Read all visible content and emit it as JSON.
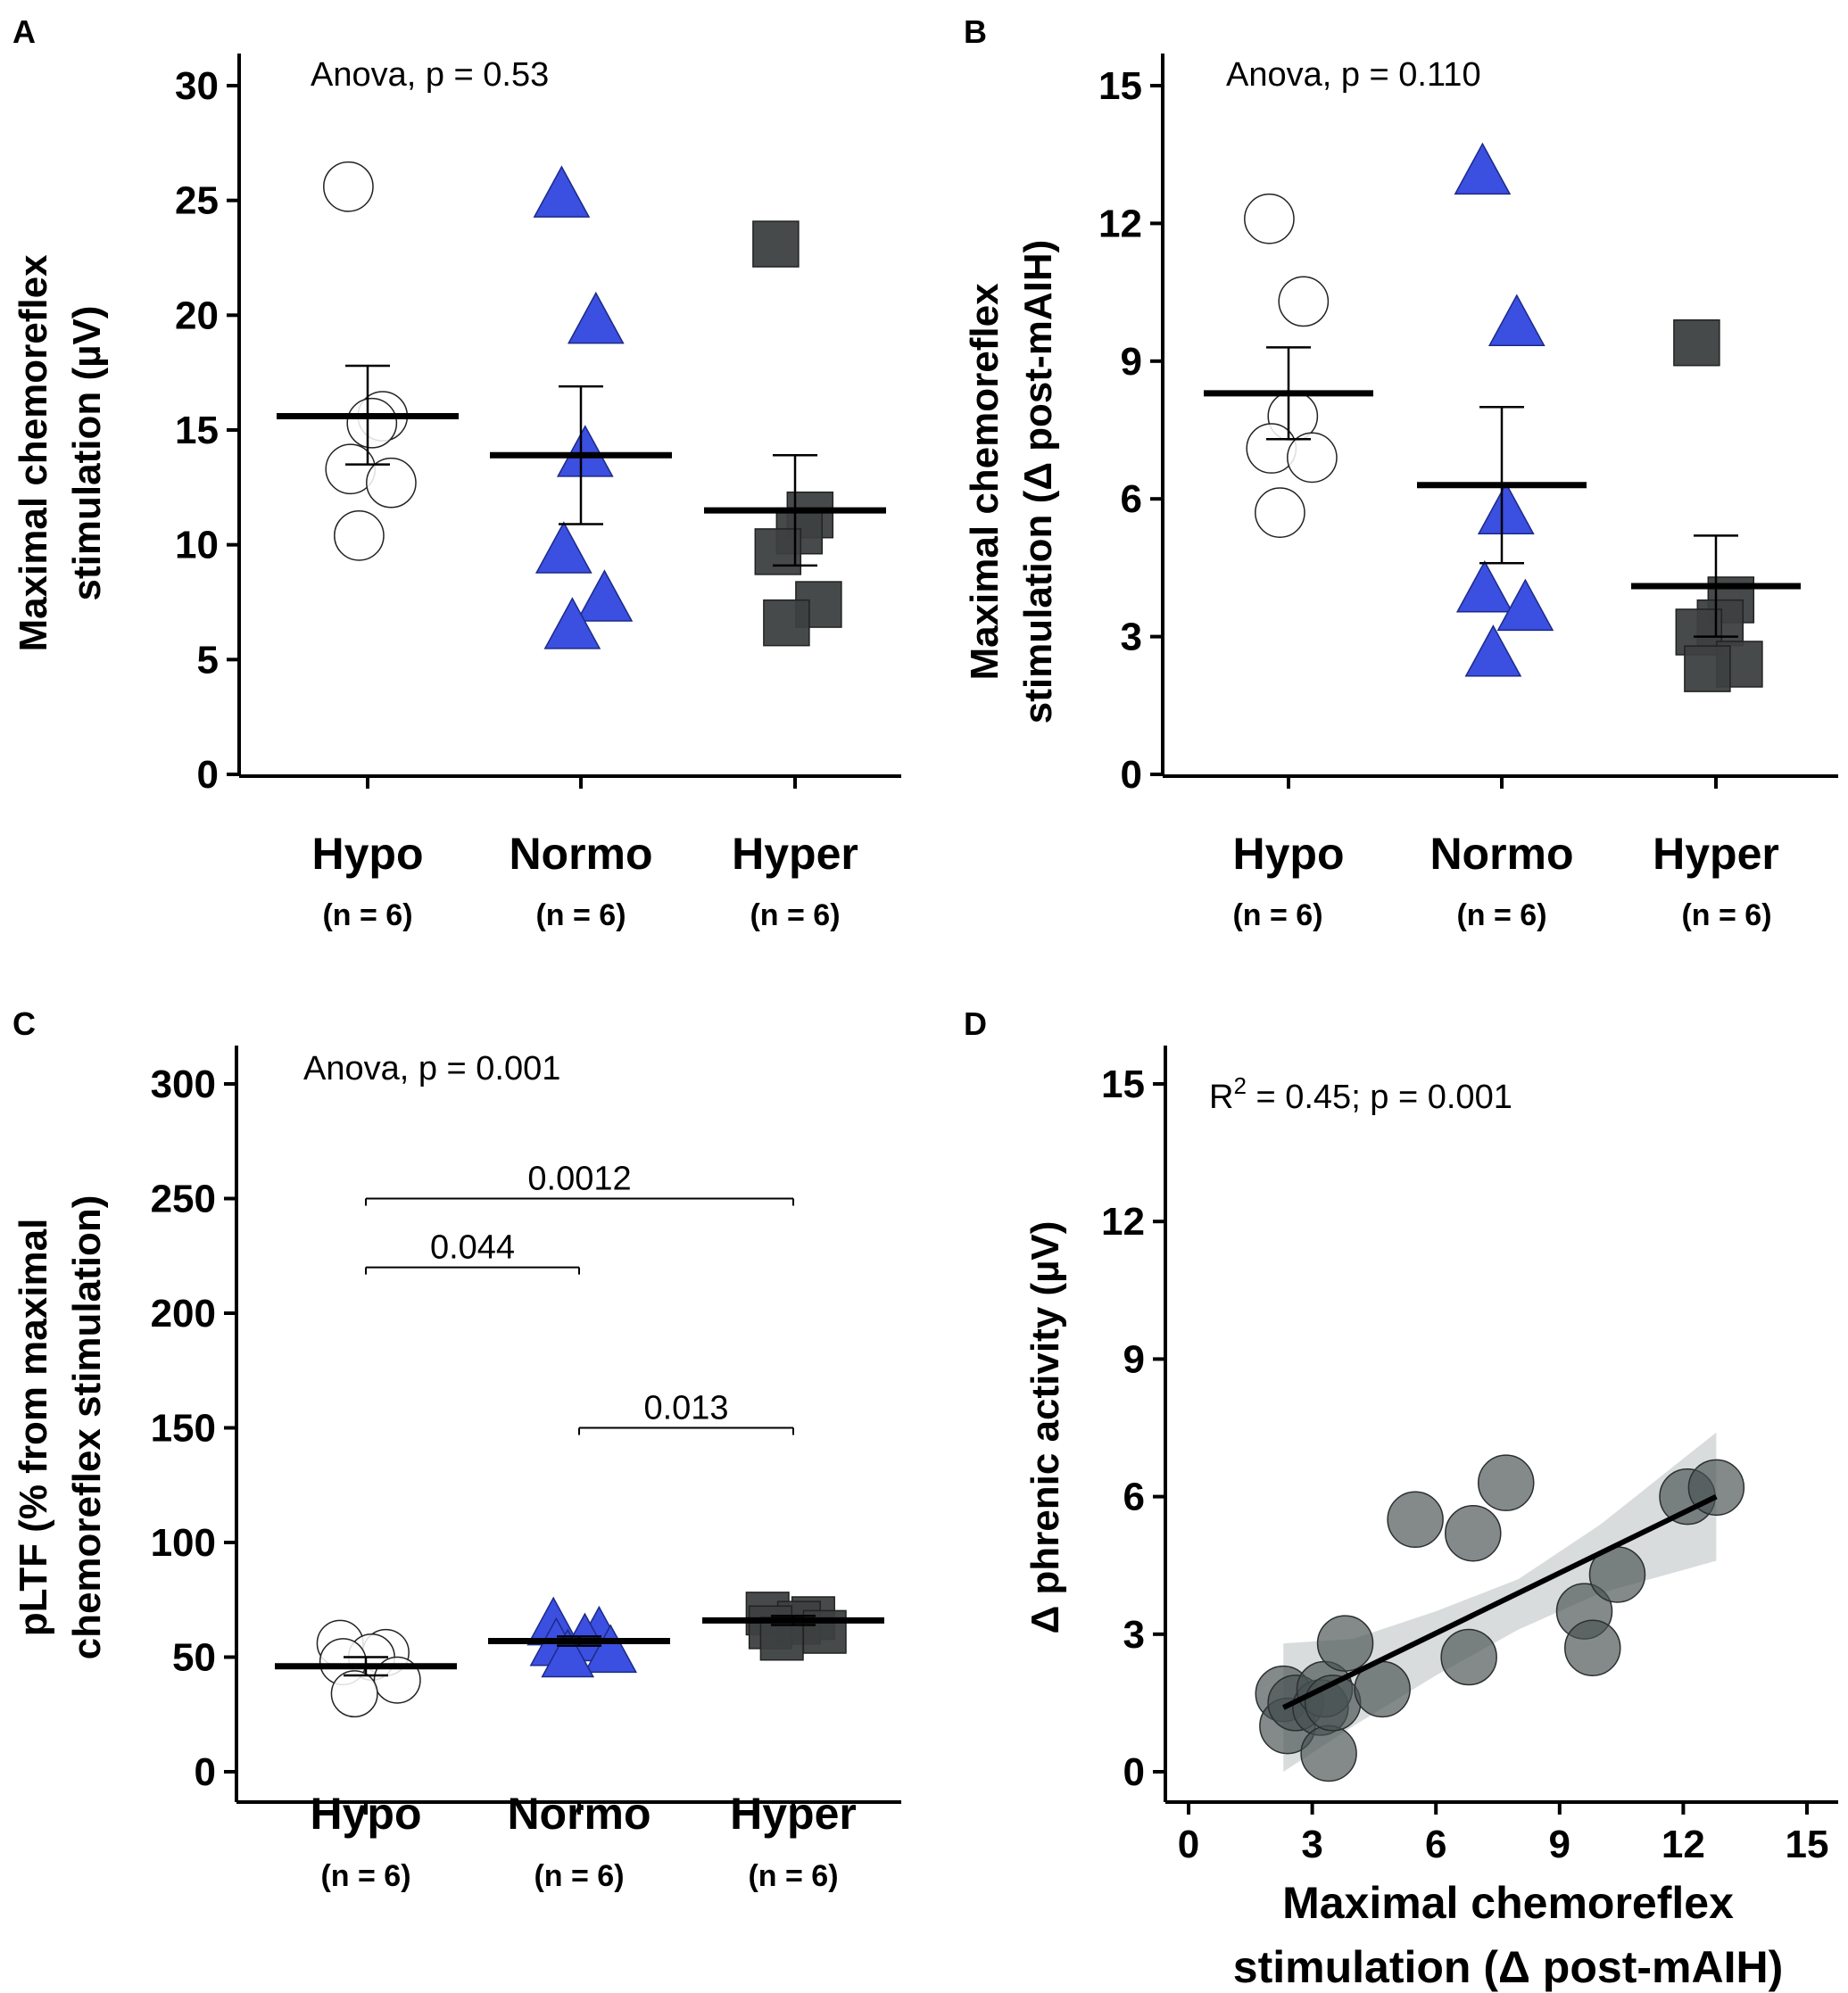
{
  "chart_data": [
    {
      "panel": "A",
      "type": "scatter",
      "categories": [
        "Hypo",
        "Normo",
        "Hyper"
      ],
      "category_n": [
        "(n = 6)",
        "(n = 6)",
        "(n = 6)"
      ],
      "ylabel_lines": [
        "Maximal chemoreflex",
        "stimulation (µV)"
      ],
      "ylim": [
        0,
        30
      ],
      "yticks": [
        0,
        5,
        10,
        15,
        20,
        25,
        30
      ],
      "annotation": "Anova, p = 0.53",
      "series": [
        {
          "name": "Hypo",
          "marker": "circle",
          "fill": "#ffffff",
          "stroke": "#222222",
          "points": [
            [
              0,
              25.6
            ],
            [
              0,
              15.6
            ],
            [
              0,
              15.3
            ],
            [
              0,
              13.3
            ],
            [
              0,
              12.7
            ],
            [
              0,
              10.4
            ]
          ],
          "mean": 15.6,
          "sem": [
            13.5,
            17.8
          ]
        },
        {
          "name": "Normo",
          "marker": "triangle",
          "fill": "#3b4fe0",
          "stroke": "#1c2a88",
          "points": [
            [
              1,
              25.2
            ],
            [
              1,
              19.7
            ],
            [
              1,
              13.9
            ],
            [
              1,
              9.7
            ],
            [
              1,
              7.6
            ],
            [
              1,
              6.4
            ]
          ],
          "mean": 13.9,
          "sem": [
            10.9,
            16.9
          ]
        },
        {
          "name": "Hyper",
          "marker": "square",
          "fill": "#3d4040",
          "stroke": "#222222",
          "points": [
            [
              2,
              23.1
            ],
            [
              2,
              11.3
            ],
            [
              2,
              10.6
            ],
            [
              2,
              9.7
            ],
            [
              2,
              7.4
            ],
            [
              2,
              6.6
            ]
          ],
          "mean": 11.5,
          "sem": [
            9.1,
            13.9
          ]
        }
      ]
    },
    {
      "panel": "B",
      "type": "scatter",
      "categories": [
        "Hypo",
        "Normo",
        "Hyper"
      ],
      "category_n": [
        "(n = 6)",
        "(n = 6)",
        "(n = 6)"
      ],
      "ylabel_lines": [
        "Maximal chemoreflex",
        "stimulation (Δ post-mAIH)"
      ],
      "ylim": [
        0,
        15
      ],
      "yticks": [
        0,
        3,
        6,
        9,
        12,
        15
      ],
      "annotation": "Anova, p = 0.110",
      "series": [
        {
          "name": "Hypo",
          "marker": "circle",
          "fill": "#ffffff",
          "stroke": "#222222",
          "points": [
            [
              0,
              12.1
            ],
            [
              0,
              10.3
            ],
            [
              0,
              7.8
            ],
            [
              0,
              7.1
            ],
            [
              0,
              6.9
            ],
            [
              0,
              5.7
            ]
          ],
          "mean": 8.3,
          "sem": [
            7.3,
            9.3
          ]
        },
        {
          "name": "Normo",
          "marker": "triangle",
          "fill": "#3b4fe0",
          "stroke": "#1c2a88",
          "points": [
            [
              1,
              13.1
            ],
            [
              1,
              9.8
            ],
            [
              1,
              5.7
            ],
            [
              1,
              4.0
            ],
            [
              1,
              3.6
            ],
            [
              1,
              2.6
            ]
          ],
          "mean": 6.3,
          "sem": [
            4.6,
            8.0
          ]
        },
        {
          "name": "Hyper",
          "marker": "square",
          "fill": "#3d4040",
          "stroke": "#222222",
          "points": [
            [
              2,
              9.4
            ],
            [
              2,
              3.8
            ],
            [
              2,
              3.3
            ],
            [
              2,
              3.1
            ],
            [
              2,
              2.4
            ],
            [
              2,
              2.3
            ]
          ],
          "mean": 4.1,
          "sem": [
            3.0,
            5.2
          ]
        }
      ]
    },
    {
      "panel": "C",
      "type": "scatter",
      "categories": [
        "Hypo",
        "Normo",
        "Hyper"
      ],
      "category_n": [
        "(n = 6)",
        "(n = 6)",
        "(n = 6)"
      ],
      "ylabel_lines": [
        "pLTF (% from maximal",
        "chemoreflex stimulation)"
      ],
      "ylim": [
        0,
        300
      ],
      "yticks": [
        0,
        50,
        100,
        150,
        200,
        250,
        300
      ],
      "annotation": "Anova, p = 0.001",
      "comparisons": [
        {
          "from": 0,
          "to": 2,
          "y": 250,
          "label": "0.0012"
        },
        {
          "from": 0,
          "to": 1,
          "y": 220,
          "label": "0.044"
        },
        {
          "from": 1,
          "to": 2,
          "y": 150,
          "label": "0.013"
        }
      ],
      "series": [
        {
          "name": "Hypo",
          "marker": "circle",
          "fill": "#ffffff",
          "stroke": "#222222",
          "points": [
            [
              0,
              56
            ],
            [
              0,
              52
            ],
            [
              0,
              50
            ],
            [
              0,
              48
            ],
            [
              0,
              40
            ],
            [
              0,
              34
            ]
          ],
          "mean": 46,
          "sem": [
            42,
            50
          ]
        },
        {
          "name": "Normo",
          "marker": "triangle",
          "fill": "#3b4fe0",
          "stroke": "#1c2a88",
          "points": [
            [
              1,
              64
            ],
            [
              1,
              60
            ],
            [
              1,
              57
            ],
            [
              1,
              55
            ],
            [
              1,
              52
            ],
            [
              1,
              50
            ]
          ],
          "mean": 57,
          "sem": [
            55,
            59
          ]
        },
        {
          "name": "Hyper",
          "marker": "square",
          "fill": "#3d4040",
          "stroke": "#222222",
          "points": [
            [
              2,
              69
            ],
            [
              2,
              67
            ],
            [
              2,
              65
            ],
            [
              2,
              63
            ],
            [
              2,
              61
            ],
            [
              2,
              58
            ]
          ],
          "mean": 66,
          "sem": [
            64,
            68
          ]
        }
      ]
    },
    {
      "panel": "D",
      "type": "scatter",
      "xlabel_lines": [
        "Maximal chemoreflex",
        "stimulation (Δ post-mAIH)"
      ],
      "ylabel": "Δ phrenic activity (µV)",
      "xlim": [
        0,
        15
      ],
      "ylim": [
        0,
        15
      ],
      "xticks": [
        0,
        3,
        6,
        9,
        12,
        15
      ],
      "yticks": [
        0,
        3,
        6,
        9,
        12,
        15
      ],
      "annotation_prefix": "R",
      "annotation_sup": "2",
      "annotation_rest": " = 0.45; p = 0.001",
      "points": [
        [
          2.3,
          1.7
        ],
        [
          2.4,
          1.0
        ],
        [
          2.6,
          1.5
        ],
        [
          3.2,
          1.4
        ],
        [
          3.3,
          1.8
        ],
        [
          3.4,
          0.4
        ],
        [
          3.5,
          1.5
        ],
        [
          3.8,
          2.8
        ],
        [
          4.7,
          1.8
        ],
        [
          5.5,
          5.5
        ],
        [
          6.8,
          2.5
        ],
        [
          6.9,
          5.2
        ],
        [
          7.7,
          6.3
        ],
        [
          9.6,
          3.5
        ],
        [
          9.8,
          2.7
        ],
        [
          10.4,
          4.3
        ],
        [
          12.1,
          6.0
        ],
        [
          12.8,
          6.2
        ]
      ],
      "fit": {
        "x0": 2.3,
        "y0": 1.4,
        "x1": 12.8,
        "y1": 6.0
      },
      "ci_band": {
        "xs": [
          2.3,
          4.0,
          6.0,
          8.0,
          10.0,
          12.8
        ],
        "lower": [
          0.0,
          1.0,
          2.1,
          3.1,
          3.9,
          4.6
        ],
        "upper": [
          2.8,
          2.9,
          3.5,
          4.2,
          5.4,
          7.4
        ]
      }
    }
  ]
}
